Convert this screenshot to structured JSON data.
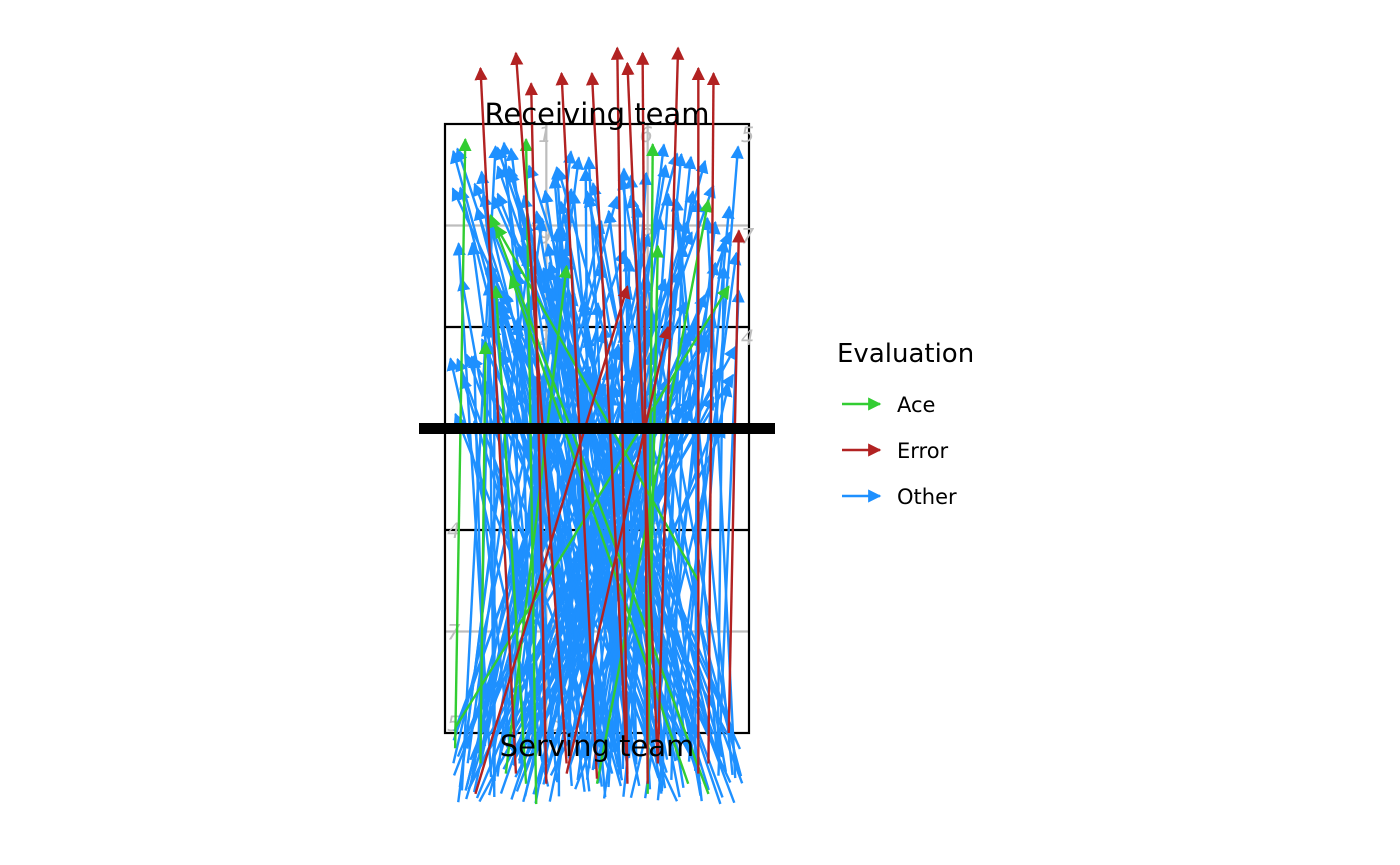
{
  "chart_data": {
    "type": "arrow-plot",
    "x_unit": "court columns (0 = left sideline, 3 = right sideline)",
    "y_unit": "court rows (0 = serving baseline, 6 = receiving baseline, 3 = net)",
    "xlim": [
      0,
      3
    ],
    "ylim": [
      0,
      6
    ],
    "labels": {
      "receiving": "Receiving team",
      "serving": "Serving team"
    },
    "zone_labels": [
      {
        "text": "4",
        "x": 0.0,
        "y": 2.0
      },
      {
        "text": "3",
        "x": 1.0,
        "y": 2.0
      },
      {
        "text": "2",
        "x": 2.0,
        "y": 2.0
      },
      {
        "text": "7",
        "x": 0.0,
        "y": 1.0
      },
      {
        "text": "8",
        "x": 1.0,
        "y": 1.0
      },
      {
        "text": "9",
        "x": 2.0,
        "y": 1.0
      },
      {
        "text": "5",
        "x": 0.0,
        "y": 0.1
      },
      {
        "text": "6",
        "x": 1.0,
        "y": 0.1
      },
      {
        "text": "1",
        "x": 2.0,
        "y": 0.1
      },
      {
        "text": "2",
        "x": 0.9,
        "y": 3.9
      },
      {
        "text": "3",
        "x": 1.9,
        "y": 3.9
      },
      {
        "text": "4",
        "x": 2.9,
        "y": 3.9
      },
      {
        "text": "9",
        "x": 0.9,
        "y": 4.9
      },
      {
        "text": "8",
        "x": 1.9,
        "y": 4.9
      },
      {
        "text": "7",
        "x": 2.9,
        "y": 4.9
      },
      {
        "text": "1",
        "x": 0.9,
        "y": 5.9
      },
      {
        "text": "6",
        "x": 1.9,
        "y": 5.9
      },
      {
        "text": "5",
        "x": 2.9,
        "y": 5.9
      }
    ],
    "legend": {
      "title": "Evaluation",
      "position": "right",
      "entries": [
        {
          "label": "Ace",
          "color": "#32cd32"
        },
        {
          "label": "Error",
          "color": "#b22222"
        },
        {
          "label": "Other",
          "color": "#1e90ff"
        }
      ]
    },
    "series": [
      {
        "name": "Ace",
        "color": "#32cd32",
        "arrows": [
          {
            "x0": 0.1,
            "y0": -0.15,
            "x1": 0.2,
            "y1": 5.85
          },
          {
            "x0": 0.9,
            "y0": -0.7,
            "x1": 0.8,
            "y1": 5.85
          },
          {
            "x0": 2.0,
            "y0": -0.6,
            "x1": 2.05,
            "y1": 5.8
          },
          {
            "x0": 0.1,
            "y0": 0.05,
            "x1": 2.8,
            "y1": 4.4
          },
          {
            "x0": 2.6,
            "y0": -0.6,
            "x1": 0.45,
            "y1": 5.1
          },
          {
            "x0": 0.35,
            "y0": -0.3,
            "x1": 0.4,
            "y1": 3.85
          },
          {
            "x0": 2.4,
            "y0": -0.5,
            "x1": 0.65,
            "y1": 4.5
          },
          {
            "x0": 1.5,
            "y0": -0.5,
            "x1": 2.6,
            "y1": 5.25
          },
          {
            "x0": 0.6,
            "y0": -0.4,
            "x1": 1.2,
            "y1": 4.6
          },
          {
            "x0": 2.0,
            "y0": -0.3,
            "x1": 2.1,
            "y1": 4.8
          },
          {
            "x0": 2.5,
            "y0": 1.5,
            "x1": 0.5,
            "y1": 5.0
          },
          {
            "x0": 0.8,
            "y0": -0.5,
            "x1": 0.5,
            "y1": 4.4
          }
        ]
      },
      {
        "name": "Error",
        "color": "#b22222",
        "arrows": [
          {
            "x0": 0.7,
            "y0": -0.4,
            "x1": 0.35,
            "y1": 6.55
          },
          {
            "x0": 1.2,
            "y0": -0.3,
            "x1": 0.7,
            "y1": 6.7
          },
          {
            "x0": 1.0,
            "y0": -0.5,
            "x1": 0.85,
            "y1": 6.4
          },
          {
            "x0": 1.5,
            "y0": -0.45,
            "x1": 1.15,
            "y1": 6.5
          },
          {
            "x0": 1.8,
            "y0": -0.4,
            "x1": 1.45,
            "y1": 6.5
          },
          {
            "x0": 1.8,
            "y0": -0.5,
            "x1": 1.7,
            "y1": 6.75
          },
          {
            "x0": 2.1,
            "y0": -0.3,
            "x1": 1.8,
            "y1": 6.6
          },
          {
            "x0": 2.0,
            "y0": -0.5,
            "x1": 1.95,
            "y1": 6.7
          },
          {
            "x0": 2.1,
            "y0": -0.3,
            "x1": 2.3,
            "y1": 6.75
          },
          {
            "x0": 2.5,
            "y0": -0.4,
            "x1": 2.5,
            "y1": 6.55
          },
          {
            "x0": 2.6,
            "y0": -0.3,
            "x1": 2.65,
            "y1": 6.5
          },
          {
            "x0": 2.8,
            "y0": 0.0,
            "x1": 2.9,
            "y1": 4.95
          },
          {
            "x0": 0.3,
            "y0": -0.6,
            "x1": 1.8,
            "y1": 4.4
          },
          {
            "x0": 1.2,
            "y0": -0.4,
            "x1": 2.2,
            "y1": 4.0
          }
        ]
      },
      {
        "name": "Other",
        "color": "#1e90ff",
        "seed": 20240417,
        "count": 205
      }
    ]
  }
}
